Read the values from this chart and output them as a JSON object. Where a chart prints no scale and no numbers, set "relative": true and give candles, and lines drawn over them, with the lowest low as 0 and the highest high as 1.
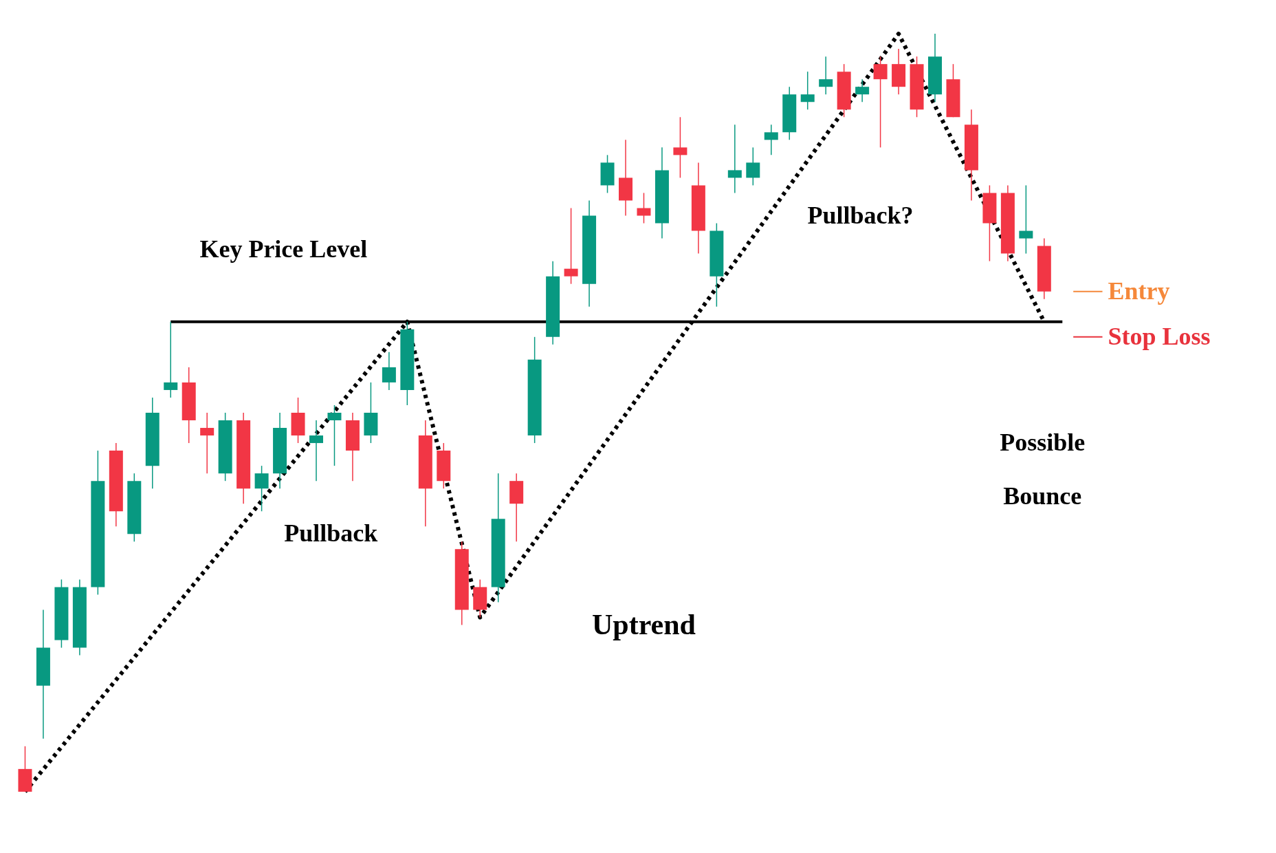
{
  "chart_data": {
    "type": "candlestick",
    "relative": true,
    "categories": [
      null,
      null,
      null,
      null,
      null,
      null,
      null,
      null,
      null,
      null,
      null,
      null,
      null,
      null,
      null,
      null,
      null,
      null,
      null,
      null,
      null,
      null,
      null,
      null,
      null,
      null,
      null,
      null,
      null,
      null,
      null,
      null,
      null,
      null,
      null,
      null,
      null,
      null,
      null,
      null,
      null,
      null,
      null,
      null,
      null,
      null,
      null,
      null,
      null,
      null,
      null,
      null,
      null,
      null,
      null,
      null,
      null
    ],
    "ohlc": [
      [
        0.03,
        0.06,
        0,
        0.0
      ],
      [
        0.14,
        0.24,
        0.07,
        0.19
      ],
      [
        0.2,
        0.28,
        0.19,
        0.27
      ],
      [
        0.19,
        0.28,
        0.18,
        0.27
      ],
      [
        0.27,
        0.45,
        0.26,
        0.41
      ],
      [
        0.45,
        0.46,
        0.35,
        0.37
      ],
      [
        0.34,
        0.42,
        0.33,
        0.41
      ],
      [
        0.43,
        0.52,
        0.4,
        0.5
      ],
      [
        0.53,
        0.62,
        0.52,
        0.54
      ],
      [
        0.54,
        0.56,
        0.46,
        0.49
      ],
      [
        0.48,
        0.5,
        0.42,
        0.47
      ],
      [
        0.42,
        0.5,
        0.41,
        0.49
      ],
      [
        0.49,
        0.5,
        0.38,
        0.4
      ],
      [
        0.4,
        0.43,
        0.37,
        0.42
      ],
      [
        0.42,
        0.5,
        0.4,
        0.48
      ],
      [
        0.5,
        0.52,
        0.46,
        0.47
      ],
      [
        0.46,
        0.49,
        0.41,
        0.47
      ],
      [
        0.49,
        0.51,
        0.43,
        0.5
      ],
      [
        0.49,
        0.5,
        0.41,
        0.45
      ],
      [
        0.47,
        0.54,
        0.46,
        0.5
      ],
      [
        0.54,
        0.58,
        0.53,
        0.56
      ],
      [
        0.53,
        0.62,
        0.51,
        0.61
      ],
      [
        0.47,
        0.49,
        0.35,
        0.4
      ],
      [
        0.45,
        0.46,
        0.4,
        0.41
      ],
      [
        0.32,
        0.33,
        0.22,
        0.24
      ],
      [
        0.27,
        0.28,
        0.23,
        0.24
      ],
      [
        0.27,
        0.42,
        0.25,
        0.36
      ],
      [
        0.41,
        0.42,
        0.33,
        0.38
      ],
      [
        0.47,
        0.6,
        0.46,
        0.57
      ],
      [
        0.6,
        0.7,
        0.59,
        0.68
      ],
      [
        0.69,
        0.77,
        0.67,
        0.68
      ],
      [
        0.67,
        0.78,
        0.64,
        0.76
      ],
      [
        0.8,
        0.84,
        0.79,
        0.83
      ],
      [
        0.81,
        0.86,
        0.76,
        0.78
      ],
      [
        0.77,
        0.79,
        0.75,
        0.76
      ],
      [
        0.75,
        0.85,
        0.73,
        0.82
      ],
      [
        0.85,
        0.89,
        0.81,
        0.84
      ],
      [
        0.8,
        0.83,
        0.71,
        0.74
      ],
      [
        0.68,
        0.75,
        0.64,
        0.74
      ],
      [
        0.81,
        0.88,
        0.79,
        0.82
      ],
      [
        0.81,
        0.85,
        0.8,
        0.83
      ],
      [
        0.86,
        0.88,
        0.84,
        0.87
      ],
      [
        0.87,
        0.93,
        0.86,
        0.92
      ],
      [
        0.91,
        0.95,
        0.9,
        0.92
      ],
      [
        0.93,
        0.97,
        0.92,
        0.94
      ],
      [
        0.95,
        0.96,
        0.89,
        0.9
      ],
      [
        0.92,
        0.94,
        0.91,
        0.93
      ],
      [
        0.96,
        0.97,
        0.85,
        0.94
      ],
      [
        0.96,
        0.98,
        0.92,
        0.93
      ],
      [
        0.96,
        0.97,
        0.89,
        0.9
      ],
      [
        0.92,
        1.0,
        0.91,
        0.97
      ],
      [
        0.94,
        0.96,
        0.89,
        0.89
      ],
      [
        0.88,
        0.9,
        0.78,
        0.82
      ],
      [
        0.79,
        0.8,
        0.7,
        0.75
      ],
      [
        0.79,
        0.8,
        0.7,
        0.71
      ],
      [
        0.73,
        0.8,
        0.71,
        0.74
      ],
      [
        0.72,
        0.73,
        0.65,
        0.66
      ]
    ],
    "colors": [
      "#f23645",
      "#089981",
      "#089981",
      "#089981",
      "#089981",
      "#f23645",
      "#089981",
      "#089981",
      "#089981",
      "#f23645",
      "#f23645",
      "#089981",
      "#f23645",
      "#089981",
      "#089981",
      "#f23645",
      "#089981",
      "#089981",
      "#f23645",
      "#089981",
      "#089981",
      "#089981",
      "#f23645",
      "#f23645",
      "#f23645",
      "#f23645",
      "#089981",
      "#f23645",
      "#089981",
      "#089981",
      "#f23645",
      "#089981",
      "#089981",
      "#f23645",
      "#f23645",
      "#089981",
      "#f23645",
      "#f23645",
      "#089981",
      "#089981",
      "#089981",
      "#089981",
      "#089981",
      "#089981",
      "#089981",
      "#f23645",
      "#089981",
      "#f23645",
      "#f23645",
      "#f23645",
      "#089981",
      "#f23645",
      "#f23645",
      "#f23645",
      "#f23645",
      "#089981",
      "#f23645"
    ],
    "series": [
      {
        "type": "line",
        "line_style": "dotted",
        "color": "#000000",
        "values": [
          0.0,
          null,
          null,
          null,
          null,
          null,
          null,
          null,
          null,
          null,
          null,
          null,
          null,
          null,
          null,
          null,
          null,
          null,
          null,
          null,
          null,
          0.62,
          null,
          null,
          null,
          0.23,
          null,
          null,
          null,
          null,
          null,
          null,
          null,
          null,
          null,
          null,
          null,
          null,
          null,
          null,
          null,
          null,
          null,
          null,
          null,
          null,
          null,
          null,
          1.0,
          null,
          null,
          null,
          null,
          null,
          null,
          null,
          0.62
        ]
      }
    ],
    "ref_lines": [
      {
        "axis": "y",
        "value": 0.62,
        "label": "Key Price Level",
        "color": "#000000"
      },
      {
        "axis": "y",
        "value": 0.66,
        "label": "Entry",
        "color": "#f5883a"
      },
      {
        "axis": "y",
        "value": 0.6,
        "label": "Stop Loss",
        "color": "#e8323c"
      }
    ],
    "annotations": [
      "Pullback",
      "Pullback?",
      "Uptrend",
      "Possible Bounce"
    ]
  }
}
